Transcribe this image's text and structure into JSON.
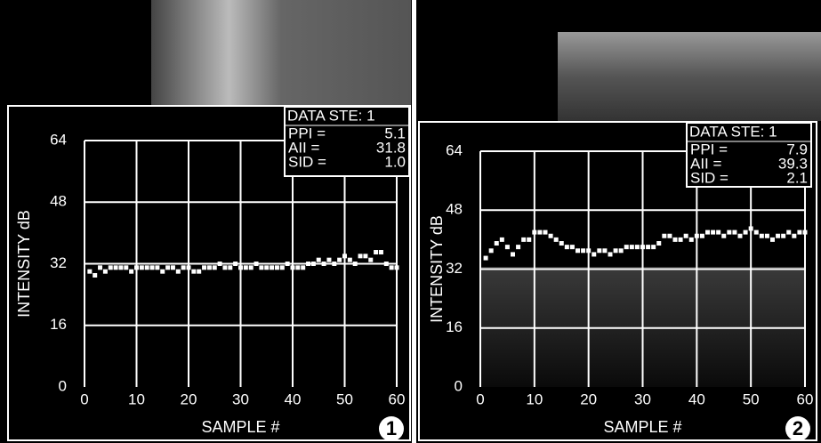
{
  "chart_data": [
    {
      "type": "scatter",
      "ylabel": "INTENSITY dB",
      "xlabel": "SAMPLE #",
      "panel": "1",
      "color": "#ffffff",
      "grid": true,
      "stats": {
        "title": "DATA STE: 1",
        "rows": [
          [
            "PPI =",
            "5.1"
          ],
          [
            "AII =",
            "31.8"
          ],
          [
            "SID =",
            "1.0"
          ]
        ]
      },
      "xlim": [
        0,
        60
      ],
      "xticks": [
        0,
        10,
        20,
        30,
        40,
        50,
        60
      ],
      "ylim": [
        0,
        64
      ],
      "yticks": [
        0,
        16,
        32,
        48,
        64
      ],
      "x": [
        1,
        2,
        3,
        4,
        5,
        6,
        7,
        8,
        9,
        10,
        11,
        12,
        13,
        14,
        15,
        16,
        17,
        18,
        19,
        20,
        21,
        22,
        23,
        24,
        25,
        26,
        27,
        28,
        29,
        30,
        31,
        32,
        33,
        34,
        35,
        36,
        37,
        38,
        39,
        40,
        41,
        42,
        43,
        44,
        45,
        46,
        47,
        48,
        49,
        50,
        51,
        52,
        53,
        54,
        55,
        56,
        57,
        58,
        59,
        60
      ],
      "values": [
        30,
        29,
        31,
        30,
        31,
        31,
        31,
        31,
        30,
        31,
        31,
        31,
        31,
        31,
        30,
        31,
        31,
        30,
        31,
        31,
        30,
        30,
        31,
        31,
        31,
        32,
        31,
        31,
        32,
        31,
        31,
        31,
        32,
        31,
        31,
        31,
        31,
        31,
        32,
        31,
        31,
        31,
        32,
        32,
        33,
        32,
        33,
        32,
        33,
        34,
        33,
        32,
        34,
        34,
        33,
        35,
        35,
        32,
        31,
        31
      ]
    },
    {
      "type": "scatter",
      "ylabel": "INTENSITY dB",
      "xlabel": "SAMPLE #",
      "panel": "2",
      "color": "#ffffff",
      "grid": true,
      "stats": {
        "title": "DATA STE: 1",
        "rows": [
          [
            "PPI =",
            "7.9"
          ],
          [
            "AII =",
            "39.3"
          ],
          [
            "SID =",
            "2.1"
          ]
        ]
      },
      "xlim": [
        0,
        60
      ],
      "xticks": [
        0,
        10,
        20,
        30,
        40,
        50,
        60
      ],
      "ylim": [
        0,
        64
      ],
      "yticks": [
        0,
        16,
        32,
        48,
        64
      ],
      "x": [
        1,
        2,
        3,
        4,
        5,
        6,
        7,
        8,
        9,
        10,
        11,
        12,
        13,
        14,
        15,
        16,
        17,
        18,
        19,
        20,
        21,
        22,
        23,
        24,
        25,
        26,
        27,
        28,
        29,
        30,
        31,
        32,
        33,
        34,
        35,
        36,
        37,
        38,
        39,
        40,
        41,
        42,
        43,
        44,
        45,
        46,
        47,
        48,
        49,
        50,
        51,
        52,
        53,
        54,
        55,
        56,
        57,
        58,
        59,
        60
      ],
      "values": [
        35,
        37,
        39,
        40,
        38,
        36,
        38,
        40,
        40,
        42,
        42,
        42,
        41,
        40,
        39,
        38,
        38,
        37,
        37,
        37,
        36,
        37,
        37,
        36,
        37,
        37,
        38,
        38,
        38,
        38,
        38,
        38,
        39,
        41,
        41,
        40,
        40,
        41,
        40,
        41,
        41,
        42,
        42,
        42,
        41,
        42,
        42,
        41,
        42,
        43,
        42,
        41,
        41,
        40,
        41,
        41,
        42,
        41,
        42,
        42
      ]
    }
  ]
}
